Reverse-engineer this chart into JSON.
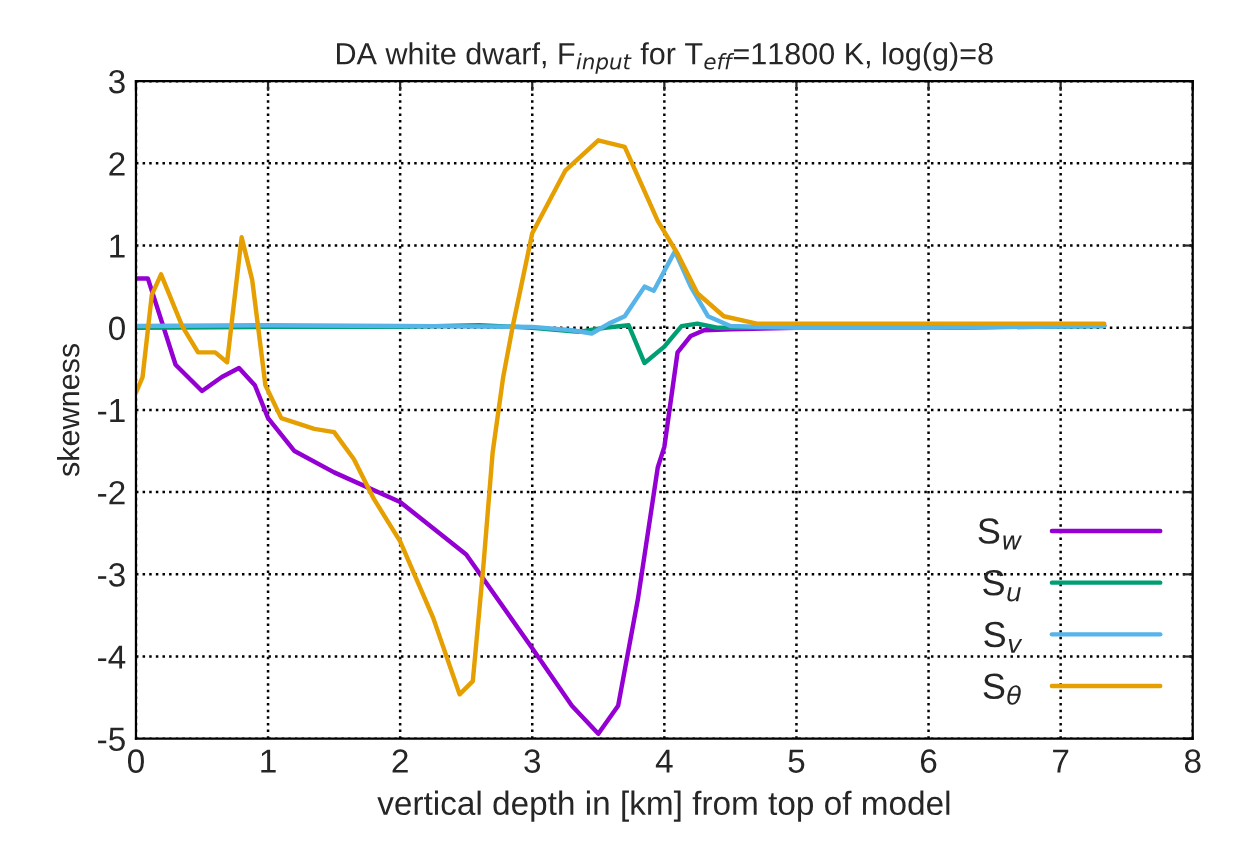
{
  "chart_data": {
    "type": "line",
    "title": "DA white dwarf, F$_{input}$ for T$_{eff}$=11800 K, log(g)=8",
    "xlabel": "vertical depth in [km] from top of model",
    "ylabel": "skewness",
    "xlim": [
      0,
      8
    ],
    "xticks": [
      0,
      1,
      2,
      3,
      4,
      5,
      6,
      7,
      8
    ],
    "ylim": [
      -5,
      3
    ],
    "yticks": [
      -5,
      -4,
      -3,
      -2,
      -1,
      0,
      1,
      2,
      3
    ],
    "grid": true,
    "legend": "bottom right",
    "line_style": "solid",
    "marker": "none",
    "series": [
      {
        "name": "S$_{w}$",
        "color": "#9400d3",
        "x": [
          0,
          0.09,
          0.3,
          0.5,
          0.65,
          0.78,
          0.9,
          1.0,
          1.2,
          1.5,
          2.0,
          2.5,
          3.0,
          3.3,
          3.5,
          3.65,
          3.8,
          3.95,
          4.0,
          4.1,
          4.2,
          4.3,
          4.5,
          5.0,
          6.0,
          7.33
        ],
        "values": [
          0.6,
          0.6,
          -0.45,
          -0.77,
          -0.6,
          -0.49,
          -0.7,
          -1.1,
          -1.5,
          -1.76,
          -2.12,
          -2.76,
          -3.9,
          -4.6,
          -4.94,
          -4.6,
          -3.3,
          -1.7,
          -1.45,
          -0.3,
          -0.1,
          -0.03,
          -0.02,
          0,
          0,
          0.03
        ]
      },
      {
        "name": "S$_{u}$",
        "color": "#009e73",
        "x": [
          0,
          1.0,
          2.0,
          2.6,
          3.0,
          3.35,
          3.55,
          3.73,
          3.85,
          4.0,
          4.13,
          4.25,
          4.4,
          5.0,
          6.0,
          7.33
        ],
        "values": [
          0,
          0.01,
          0.01,
          0.03,
          0,
          -0.05,
          0,
          0.03,
          -0.43,
          -0.23,
          0.02,
          0.05,
          0,
          0,
          0,
          0.02
        ]
      },
      {
        "name": "S$_{v}$",
        "color": "#56b4e9",
        "x": [
          0,
          1.0,
          2.0,
          3.0,
          3.3,
          3.45,
          3.58,
          3.7,
          3.85,
          3.92,
          4.08,
          4.2,
          4.33,
          4.5,
          5.0,
          6.0,
          7.33
        ],
        "values": [
          0.02,
          0.03,
          0.02,
          0.01,
          -0.03,
          -0.07,
          0.05,
          0.14,
          0.5,
          0.45,
          0.93,
          0.5,
          0.14,
          0.02,
          0,
          0,
          0.02
        ]
      },
      {
        "name": "S$_{θ}$",
        "color": "#e69f00",
        "x": [
          0,
          0.05,
          0.12,
          0.19,
          0.35,
          0.47,
          0.6,
          0.69,
          0.8,
          0.88,
          0.98,
          1.1,
          1.35,
          1.5,
          1.65,
          1.8,
          2.0,
          2.25,
          2.45,
          2.55,
          2.63,
          2.7,
          2.78,
          2.85,
          3.0,
          3.25,
          3.5,
          3.7,
          3.95,
          4.1,
          4.25,
          4.45,
          4.7,
          5.5,
          7.33
        ],
        "values": [
          -0.79,
          -0.6,
          0.4,
          0.65,
          0.02,
          -0.3,
          -0.3,
          -0.42,
          1.1,
          0.58,
          -0.7,
          -1.1,
          -1.23,
          -1.27,
          -1.6,
          -2.08,
          -2.6,
          -3.53,
          -4.46,
          -4.3,
          -2.9,
          -1.52,
          -0.6,
          0.0,
          1.15,
          1.91,
          2.28,
          2.2,
          1.3,
          0.9,
          0.42,
          0.14,
          0.05,
          0.05,
          0.05
        ]
      }
    ]
  }
}
